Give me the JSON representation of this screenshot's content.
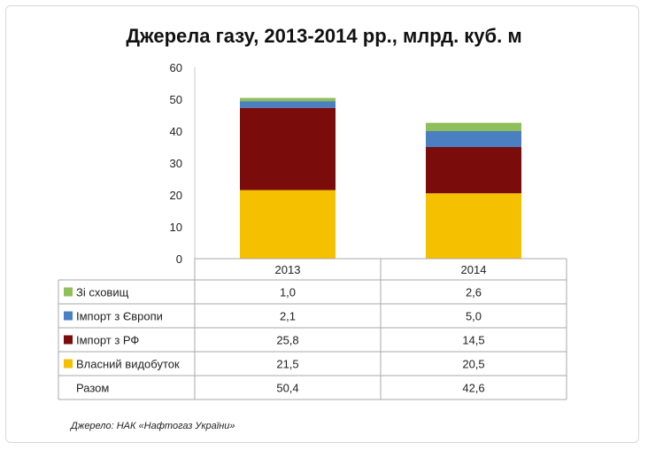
{
  "chart_data": {
    "type": "bar",
    "stacked": true,
    "title": "Джерела газу, 2013-2014 рр., млрд. куб. м",
    "categories": [
      "2013",
      "2014"
    ],
    "ylim": [
      0,
      60
    ],
    "yticks": [
      0,
      10,
      20,
      30,
      40,
      50,
      60
    ],
    "grid": false,
    "legend": "table-left",
    "series": [
      {
        "name": "Власний видобуток",
        "label": "Власний видобуток",
        "values": [
          21.5,
          20.5
        ],
        "display": [
          "21,5",
          "20,5"
        ],
        "color": "#f5c000"
      },
      {
        "name": "Імпорт з РФ",
        "label": "Імпорт з РФ",
        "values": [
          25.8,
          14.5
        ],
        "display": [
          "25,8",
          "14,5"
        ],
        "color": "#7b0c0c"
      },
      {
        "name": "Імпорт з Європи",
        "label": "Імпорт з Європи",
        "values": [
          2.1,
          5.0
        ],
        "display": [
          "2,1",
          "5,0"
        ],
        "color": "#4a7fc1"
      },
      {
        "name": "Зі сховищ",
        "label": "Зі сховищ",
        "values": [
          1.0,
          2.6
        ],
        "display": [
          "1,0",
          "2,6"
        ],
        "color": "#8fbf5a"
      }
    ],
    "total": {
      "label": "Разом",
      "values": [
        50.4,
        42.6
      ],
      "display": [
        "50,4",
        "42,6"
      ]
    },
    "source": "Джерело: НАК «Нафтогаз України»"
  }
}
